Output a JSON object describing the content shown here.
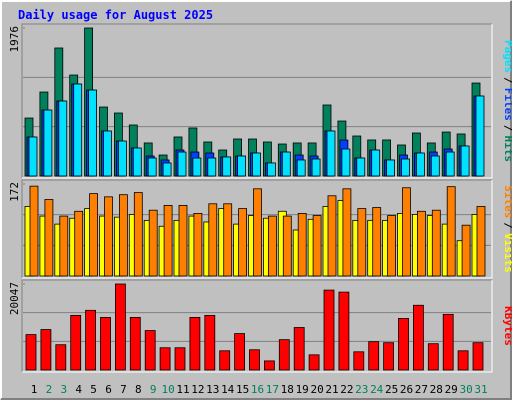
{
  "chart_data": {
    "type": "bar",
    "title": "Daily usage for August 2025",
    "categories": [
      "1",
      "2",
      "3",
      "4",
      "5",
      "6",
      "7",
      "8",
      "9",
      "10",
      "11",
      "12",
      "13",
      "14",
      "15",
      "16",
      "17",
      "18",
      "19",
      "20",
      "21",
      "22",
      "23",
      "24",
      "25",
      "26",
      "27",
      "28",
      "29",
      "30",
      "31"
    ],
    "category_colors": [
      "#000000",
      "#00805c",
      "#00805c",
      "#000000",
      "#000000",
      "#000000",
      "#000000",
      "#000000",
      "#00805c",
      "#00805c",
      "#000000",
      "#000000",
      "#000000",
      "#000000",
      "#000000",
      "#00805c",
      "#00805c",
      "#000000",
      "#000000",
      "#000000",
      "#000000",
      "#000000",
      "#00805c",
      "#00805c",
      "#000000",
      "#000000",
      "#000000",
      "#000000",
      "#000000",
      "#00805c",
      "#00805c"
    ],
    "legend_separator": "/",
    "panels": [
      {
        "ylim": [
          0,
          1976
        ],
        "yticks": [
          1976
        ],
        "series": [
          {
            "name": "Hits",
            "color": "#00805c",
            "values": [
              774,
              1121,
              1709,
              1348,
              1976,
              921,
              841,
              681,
              441,
              280,
              521,
              641,
              454,
              347,
              494,
              494,
              454,
              427,
              441,
              441,
              948,
              734,
              534,
              481,
              481,
              414,
              574,
              441,
              587,
              561,
              1241
            ]
          },
          {
            "name": "Files",
            "color": "#0040ff",
            "values": [
              521,
              881,
              1001,
              1228,
              1148,
              601,
              467,
              374,
              267,
              214,
              347,
              320,
              307,
              254,
              267,
              307,
              174,
              320,
              280,
              267,
              601,
              480,
              240,
              347,
              214,
              280,
              307,
              320,
              360,
              401,
              1068
            ]
          },
          {
            "name": "Pages",
            "color": "#00e0ff",
            "values": [
              521,
              881,
              1001,
              1228,
              1148,
              601,
              467,
              374,
              240,
              174,
              320,
              240,
              240,
              254,
              267,
              307,
              174,
              320,
              214,
              227,
              601,
              360,
              240,
              347,
              214,
              227,
              307,
              267,
              320,
              401,
              1068
            ]
          }
        ]
      },
      {
        "ylim": [
          0,
          172
        ],
        "yticks": [
          172
        ],
        "series": [
          {
            "name": "Visits",
            "color": "#ffff00",
            "values": [
              130,
              112,
              97,
              108,
              126,
              112,
              110,
              115,
              104,
              93,
              104,
              112,
              101,
              126,
              97,
              113,
              108,
              121,
              86,
              106,
              130,
              141,
              104,
              104,
              104,
              117,
              115,
              113,
              97,
              66,
              115
            ]
          },
          {
            "name": "Sites",
            "color": "#ff8000",
            "values": [
              168,
              143,
              112,
              121,
              154,
              148,
              152,
              156,
              123,
              132,
              132,
              117,
              135,
              135,
              126,
              163,
              112,
              112,
              117,
              113,
              150,
              163,
              126,
              128,
              113,
              165,
              121,
              123,
              167,
              95,
              130
            ]
          }
        ]
      },
      {
        "ylim": [
          0,
          20047
        ],
        "yticks": [
          20047
        ],
        "series": [
          {
            "name": "KBytes",
            "color": "#ff0000",
            "values": [
              8253,
              9432,
              5895,
              12733,
              13912,
              12262,
              20047,
              12262,
              9196,
              5188,
              5188,
              12262,
              12733,
              4480,
              8489,
              4716,
              2122,
              7074,
              9904,
              3537,
              18628,
              18157,
              4244,
              6602,
              6367,
              12026,
              15091,
              6131,
              12969,
              4480,
              6367
            ]
          }
        ]
      }
    ]
  }
}
